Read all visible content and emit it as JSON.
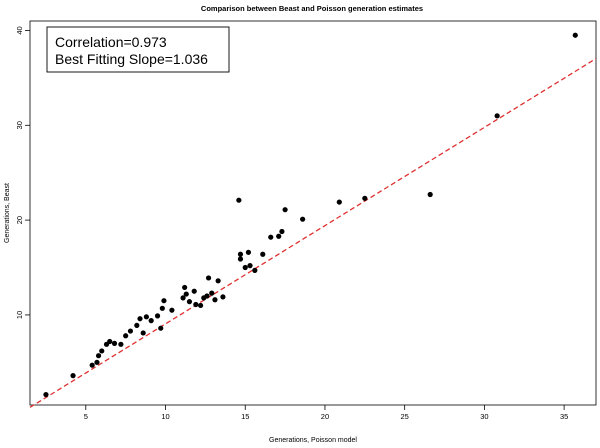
{
  "chart_data": {
    "type": "scatter",
    "title": "Comparison between Beast and Poisson generation estimates",
    "xlabel": "Generations, Poisson model",
    "ylabel": "Generations, Beast",
    "xlim": [
      1.5,
      37
    ],
    "ylim": [
      0.5,
      41
    ],
    "x_ticks": [
      5,
      10,
      15,
      20,
      25,
      30,
      35
    ],
    "y_ticks": [
      10,
      20,
      30,
      40
    ],
    "grid": false,
    "legend_position": "top-left",
    "annotations": [
      "Correlation=0.973",
      "Best Fitting Slope=1.036"
    ],
    "fit_line": {
      "slope": 1.036,
      "intercept": -1.3,
      "style": "dashed",
      "color": "#e03030"
    },
    "point_color": "#000000",
    "points": [
      {
        "x": 2.5,
        "y": 1.6
      },
      {
        "x": 4.2,
        "y": 3.6
      },
      {
        "x": 5.4,
        "y": 4.7
      },
      {
        "x": 5.7,
        "y": 5.0
      },
      {
        "x": 5.8,
        "y": 5.7
      },
      {
        "x": 6.0,
        "y": 6.2
      },
      {
        "x": 6.3,
        "y": 6.9
      },
      {
        "x": 6.5,
        "y": 7.2
      },
      {
        "x": 6.8,
        "y": 7.0
      },
      {
        "x": 7.2,
        "y": 6.9
      },
      {
        "x": 7.5,
        "y": 7.8
      },
      {
        "x": 7.8,
        "y": 8.3
      },
      {
        "x": 8.2,
        "y": 8.9
      },
      {
        "x": 8.4,
        "y": 9.6
      },
      {
        "x": 8.6,
        "y": 8.1
      },
      {
        "x": 8.8,
        "y": 9.8
      },
      {
        "x": 9.1,
        "y": 9.4
      },
      {
        "x": 9.5,
        "y": 9.9
      },
      {
        "x": 9.7,
        "y": 8.6
      },
      {
        "x": 9.8,
        "y": 10.7
      },
      {
        "x": 9.9,
        "y": 11.5
      },
      {
        "x": 10.4,
        "y": 10.5
      },
      {
        "x": 11.1,
        "y": 11.8
      },
      {
        "x": 11.2,
        "y": 12.9
      },
      {
        "x": 11.3,
        "y": 12.2
      },
      {
        "x": 11.5,
        "y": 11.4
      },
      {
        "x": 11.8,
        "y": 12.5
      },
      {
        "x": 11.9,
        "y": 11.1
      },
      {
        "x": 12.2,
        "y": 11.0
      },
      {
        "x": 12.4,
        "y": 11.8
      },
      {
        "x": 12.6,
        "y": 12.0
      },
      {
        "x": 12.7,
        "y": 13.9
      },
      {
        "x": 12.9,
        "y": 12.3
      },
      {
        "x": 13.1,
        "y": 11.6
      },
      {
        "x": 13.3,
        "y": 13.6
      },
      {
        "x": 13.6,
        "y": 11.9
      },
      {
        "x": 14.6,
        "y": 22.1
      },
      {
        "x": 14.7,
        "y": 15.9
      },
      {
        "x": 14.7,
        "y": 16.4
      },
      {
        "x": 15.0,
        "y": 15.0
      },
      {
        "x": 15.2,
        "y": 16.6
      },
      {
        "x": 15.3,
        "y": 15.2
      },
      {
        "x": 15.6,
        "y": 14.7
      },
      {
        "x": 16.1,
        "y": 16.4
      },
      {
        "x": 16.6,
        "y": 18.2
      },
      {
        "x": 17.1,
        "y": 18.3
      },
      {
        "x": 17.3,
        "y": 18.8
      },
      {
        "x": 17.5,
        "y": 21.1
      },
      {
        "x": 18.6,
        "y": 20.1
      },
      {
        "x": 20.9,
        "y": 21.9
      },
      {
        "x": 22.5,
        "y": 22.3
      },
      {
        "x": 26.6,
        "y": 22.7
      },
      {
        "x": 30.8,
        "y": 31.0
      },
      {
        "x": 35.7,
        "y": 39.5
      }
    ]
  }
}
